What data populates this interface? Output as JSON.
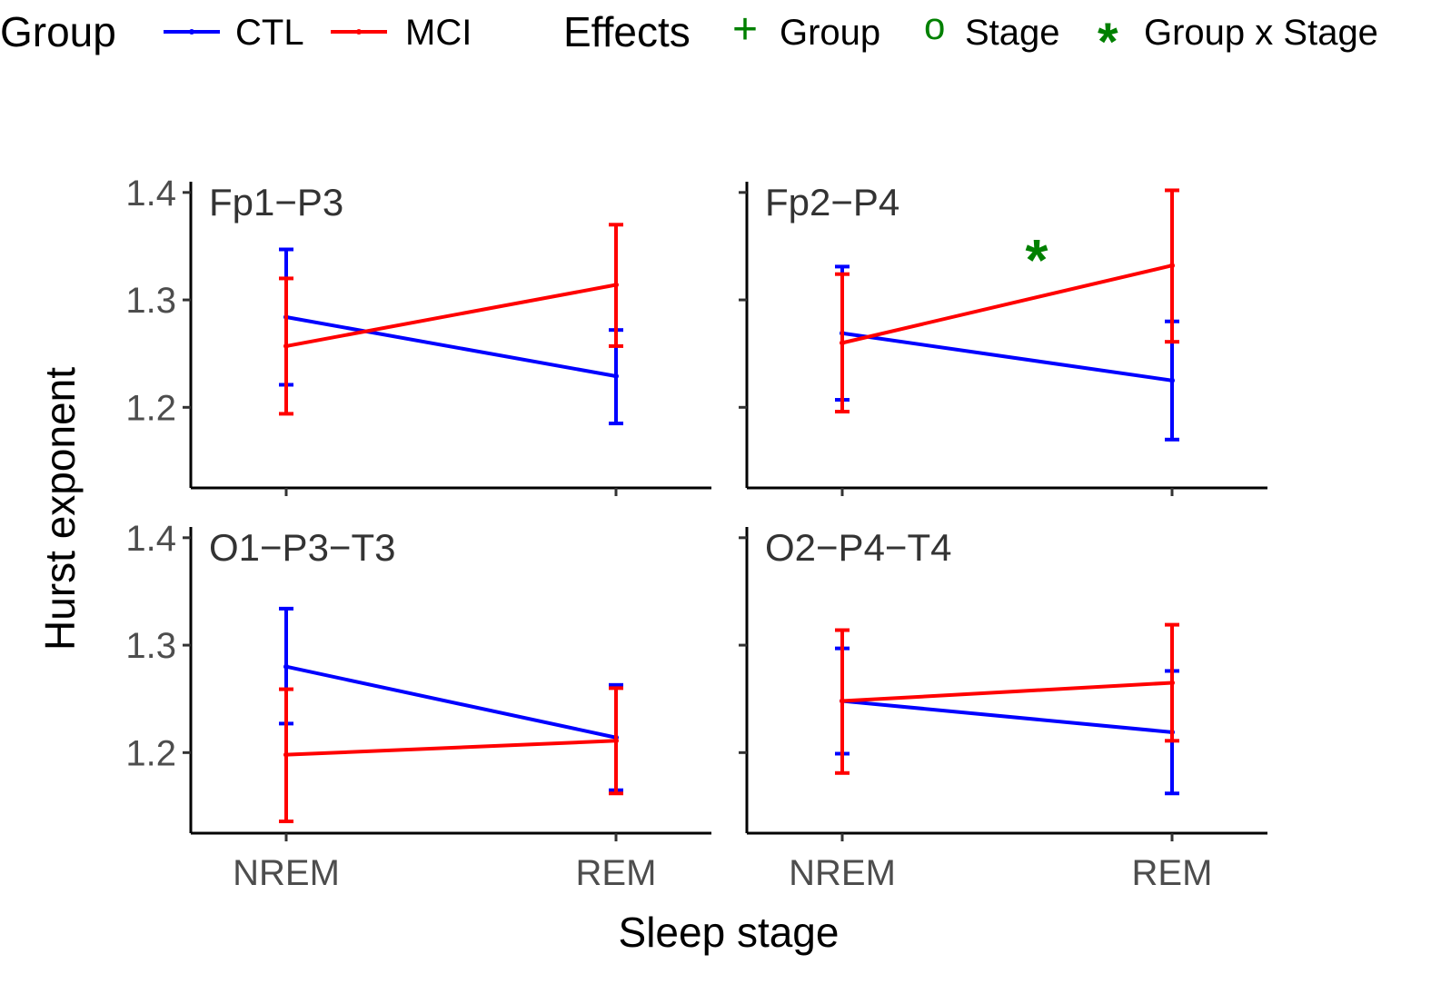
{
  "legend": {
    "group_title": "Group",
    "groups": [
      {
        "label": "CTL",
        "color": "#0000ff"
      },
      {
        "label": "MCI",
        "color": "#ff0000"
      }
    ],
    "effects_title": "Effects",
    "effects": [
      {
        "symbol": "+",
        "label": "Group"
      },
      {
        "symbol": "o",
        "label": "Stage"
      },
      {
        "symbol": "*",
        "label": "Group x Stage"
      }
    ],
    "effect_color": "#008000"
  },
  "axes": {
    "xlabel": "Sleep stage",
    "ylabel": "Hurst exponent"
  },
  "chart_data": {
    "type": "line",
    "categories": [
      "NREM",
      "REM"
    ],
    "y_ticks": [
      "1.2",
      "1.3",
      "1.4"
    ],
    "ylim": [
      1.125,
      1.41
    ],
    "grid": false,
    "legend_position": "top",
    "panels": [
      {
        "title": "Fp1−P3",
        "effect_marker": "",
        "series": [
          {
            "name": "CTL",
            "color": "#0000ff",
            "values": [
              1.284,
              1.229
            ],
            "lower": [
              1.221,
              1.185
            ],
            "upper": [
              1.347,
              1.272
            ]
          },
          {
            "name": "MCI",
            "color": "#ff0000",
            "values": [
              1.257,
              1.314
            ],
            "lower": [
              1.194,
              1.257
            ],
            "upper": [
              1.32,
              1.37
            ]
          }
        ]
      },
      {
        "title": "Fp2−P4",
        "effect_marker": "*",
        "series": [
          {
            "name": "CTL",
            "color": "#0000ff",
            "values": [
              1.269,
              1.225
            ],
            "lower": [
              1.207,
              1.17
            ],
            "upper": [
              1.331,
              1.28
            ]
          },
          {
            "name": "MCI",
            "color": "#ff0000",
            "values": [
              1.26,
              1.332
            ],
            "lower": [
              1.196,
              1.261
            ],
            "upper": [
              1.324,
              1.402
            ]
          }
        ]
      },
      {
        "title": "O1−P3−T3",
        "effect_marker": "",
        "series": [
          {
            "name": "CTL",
            "color": "#0000ff",
            "values": [
              1.28,
              1.214
            ],
            "lower": [
              1.227,
              1.165
            ],
            "upper": [
              1.334,
              1.263
            ]
          },
          {
            "name": "MCI",
            "color": "#ff0000",
            "values": [
              1.198,
              1.211
            ],
            "lower": [
              1.136,
              1.162
            ],
            "upper": [
              1.259,
              1.26
            ]
          }
        ]
      },
      {
        "title": "O2−P4−T4",
        "effect_marker": "",
        "series": [
          {
            "name": "CTL",
            "color": "#0000ff",
            "values": [
              1.248,
              1.219
            ],
            "lower": [
              1.199,
              1.162
            ],
            "upper": [
              1.297,
              1.276
            ]
          },
          {
            "name": "MCI",
            "color": "#ff0000",
            "values": [
              1.248,
              1.265
            ],
            "lower": [
              1.181,
              1.211
            ],
            "upper": [
              1.314,
              1.319
            ]
          }
        ]
      }
    ]
  }
}
